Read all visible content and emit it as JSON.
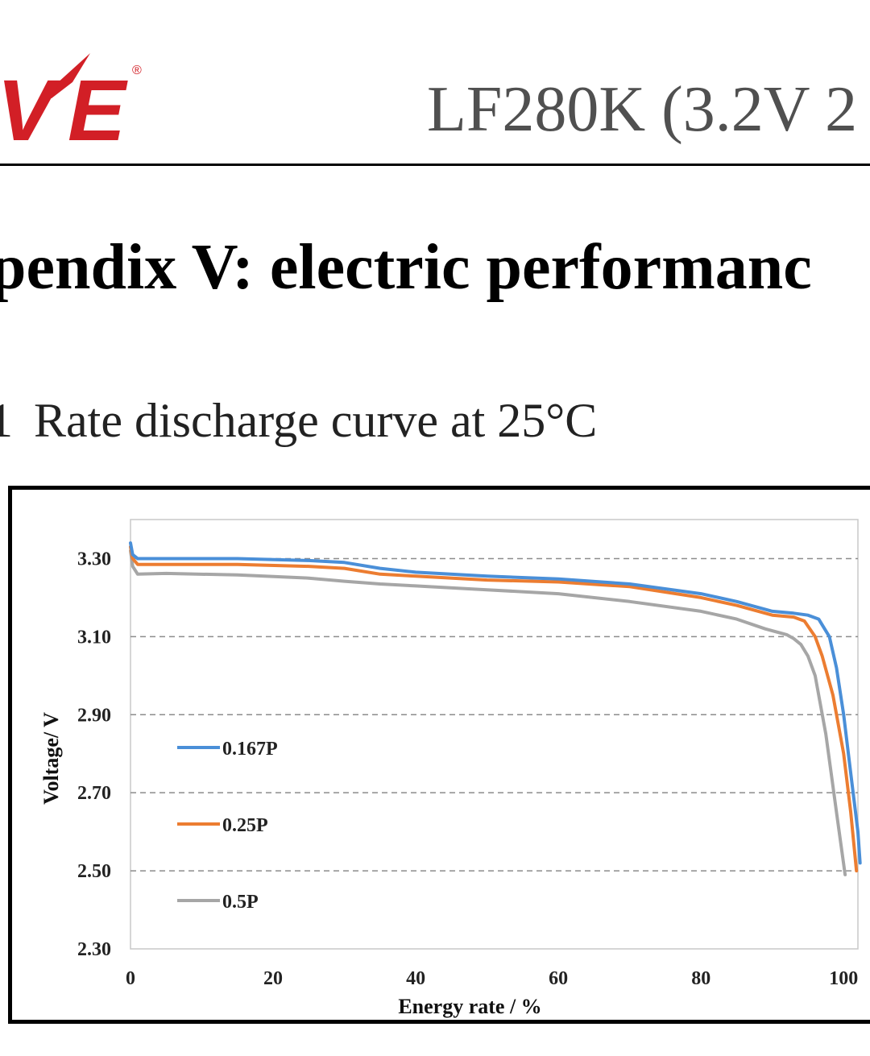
{
  "header": {
    "logo_text": "VE",
    "registered_mark": "®",
    "title": "LF280K (3.2V 2"
  },
  "colors": {
    "brand_red": "#d21f26",
    "series_blue": "#4a8fd8",
    "series_orange": "#ec7d31",
    "series_gray": "#a6a6a6"
  },
  "section": {
    "heading": "pendix V: electric performanc"
  },
  "caption": {
    "number": "1",
    "text": "Rate discharge curve at 25°C"
  },
  "chart_data": {
    "type": "line",
    "title": "",
    "xlabel": "Energy rate / %",
    "ylabel": "Voltage/ V",
    "xlim": [
      0,
      102
    ],
    "ylim": [
      2.3,
      3.4
    ],
    "xticks": [
      "0",
      "20",
      "40",
      "60",
      "80",
      "100"
    ],
    "yticks": [
      "2.30",
      "2.50",
      "2.70",
      "2.90",
      "3.10",
      "3.30"
    ],
    "grid": "horizontal dashed",
    "legend_position": "left-middle",
    "series": [
      {
        "name": "0.167P",
        "color": "#4a8fd8",
        "x": [
          0,
          0.3,
          1,
          5,
          15,
          25,
          30,
          35,
          40,
          50,
          60,
          70,
          80,
          85,
          90,
          93,
          95,
          96.5,
          98,
          99,
          100,
          101,
          102,
          102.3
        ],
        "y": [
          3.34,
          3.31,
          3.3,
          3.3,
          3.3,
          3.295,
          3.29,
          3.275,
          3.265,
          3.255,
          3.248,
          3.235,
          3.21,
          3.19,
          3.165,
          3.16,
          3.155,
          3.145,
          3.1,
          3.02,
          2.9,
          2.75,
          2.6,
          2.52
        ]
      },
      {
        "name": "0.25P",
        "color": "#ec7d31",
        "x": [
          0,
          0.3,
          1,
          5,
          15,
          25,
          30,
          35,
          40,
          50,
          60,
          70,
          80,
          85,
          90,
          93,
          94.5,
          96,
          97,
          98.5,
          100,
          101,
          101.8
        ],
        "y": [
          3.33,
          3.3,
          3.285,
          3.285,
          3.285,
          3.28,
          3.275,
          3.26,
          3.255,
          3.245,
          3.24,
          3.228,
          3.2,
          3.18,
          3.155,
          3.15,
          3.14,
          3.1,
          3.05,
          2.95,
          2.8,
          2.65,
          2.5
        ]
      },
      {
        "name": "0.5P",
        "color": "#a6a6a6",
        "x": [
          0,
          0.3,
          1,
          5,
          15,
          25,
          30,
          35,
          40,
          50,
          60,
          70,
          80,
          85,
          89,
          92,
          93,
          94,
          95,
          96,
          97.5,
          99,
          100.2
        ],
        "y": [
          3.32,
          3.28,
          3.26,
          3.262,
          3.258,
          3.25,
          3.242,
          3.235,
          3.23,
          3.22,
          3.21,
          3.19,
          3.165,
          3.145,
          3.12,
          3.105,
          3.095,
          3.08,
          3.05,
          3.0,
          2.85,
          2.65,
          2.49
        ]
      }
    ]
  }
}
